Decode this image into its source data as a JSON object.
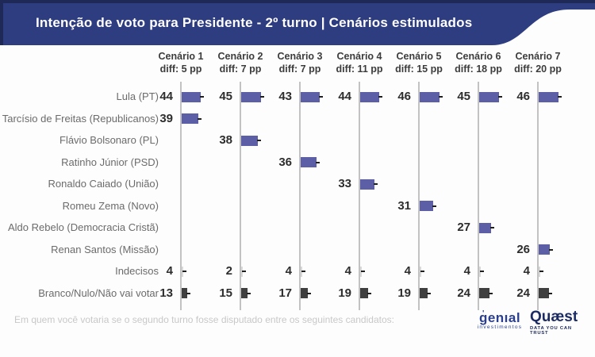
{
  "banner": {
    "title": "Intenção de voto para Presidente - 2º turno | Cenários estimulados"
  },
  "chart_data": {
    "type": "bar",
    "title": "Intenção de voto para Presidente - 2º turno | Cenários estimulados",
    "orientation": "horizontal",
    "unit": "%",
    "rows": [
      "Lula (PT)",
      "Tarcísio de Freitas (Republicanos)",
      "Flávio Bolsonaro (PL)",
      "Ratinho Júnior (PSD)",
      "Ronaldo Caiado (União)",
      "Romeu Zema (Novo)",
      "Aldo Rebelo (Democracia Cristã)",
      "Renan Santos (Missão)",
      "Indecisos",
      "Branco/Nulo/Não vai votar"
    ],
    "row_styles": [
      "candidate",
      "candidate",
      "candidate",
      "candidate",
      "candidate",
      "candidate",
      "candidate",
      "candidate",
      "undecided",
      "blank"
    ],
    "scenarios": [
      {
        "label": "Cenário 1",
        "diff_label": "diff: 5 pp",
        "values": [
          44,
          39,
          null,
          null,
          null,
          null,
          null,
          null,
          4,
          13
        ]
      },
      {
        "label": "Cenário 2",
        "diff_label": "diff: 7 pp",
        "values": [
          45,
          null,
          38,
          null,
          null,
          null,
          null,
          null,
          2,
          15
        ]
      },
      {
        "label": "Cenário 3",
        "diff_label": "diff: 7 pp",
        "values": [
          43,
          null,
          null,
          36,
          null,
          null,
          null,
          null,
          4,
          17
        ]
      },
      {
        "label": "Cenário 4",
        "diff_label": "diff: 11 pp",
        "values": [
          44,
          null,
          null,
          null,
          33,
          null,
          null,
          null,
          4,
          19
        ]
      },
      {
        "label": "Cenário 5",
        "diff_label": "diff: 15 pp",
        "values": [
          46,
          null,
          null,
          null,
          null,
          31,
          null,
          null,
          4,
          19
        ]
      },
      {
        "label": "Cenário 6",
        "diff_label": "diff: 18 pp",
        "values": [
          45,
          null,
          null,
          null,
          null,
          null,
          27,
          null,
          4,
          24
        ]
      },
      {
        "label": "Cenário 7",
        "diff_label": "diff: 20 pp",
        "values": [
          46,
          null,
          null,
          null,
          null,
          null,
          null,
          26,
          4,
          24
        ]
      }
    ],
    "colors": {
      "candidate": "#5c5fa5",
      "undecided": "#d9d9d9",
      "blank": "#3f3f3f",
      "axis": "#c2c2c2",
      "banner": "#2e3c80",
      "banner_dark": "#1f2957"
    },
    "legend": false,
    "grid": false
  },
  "footer": {
    "question": "Em quem você votaria se o segundo turno fosse disputado entre os seguintes candidatos:"
  },
  "logos": {
    "genial": {
      "name": "genıal",
      "sub": "investimentos"
    },
    "quaest": {
      "name": "Quæst",
      "sub": "DATA YOU CAN TRUST"
    }
  }
}
